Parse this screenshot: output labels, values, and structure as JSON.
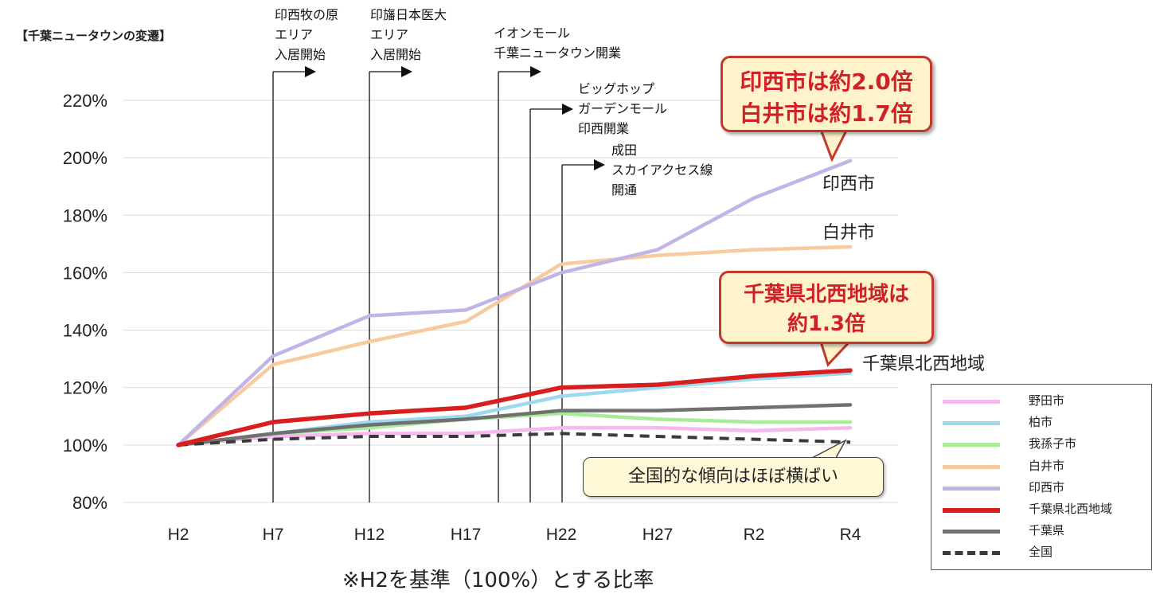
{
  "header": {
    "title": "【千葉ニュータウンの変遷】"
  },
  "footnote": "※H2を基準（100%）とする比率",
  "callouts": {
    "inzai_shiroi": [
      "印西市は約2.0倍",
      "白井市は約1.7倍"
    ],
    "hokusei": [
      "千葉県北西地域は",
      "約1.3倍"
    ],
    "national": "全国的な傾向はほぼ横ばい"
  },
  "events": [
    {
      "lines": [
        "印西牧の原",
        "エリア",
        "入居開始"
      ]
    },
    {
      "lines": [
        "印旛日本医大",
        "エリア",
        "入居開始"
      ]
    },
    {
      "lines": [
        "イオンモール",
        "千葉ニュータウン開業"
      ]
    },
    {
      "lines": [
        "ビッグホップ",
        "ガーデンモール",
        "印西開業"
      ]
    },
    {
      "lines": [
        "成田",
        "スカイアクセス線",
        "開通"
      ]
    }
  ],
  "series_labels": {
    "inzai": "印西市",
    "shiroi": "白井市",
    "hokusei": "千葉県北西地域"
  },
  "legend": [
    {
      "label": "野田市",
      "color": "#f7b8f0",
      "style": "solid"
    },
    {
      "label": "柏市",
      "color": "#9ed8ee",
      "style": "solid"
    },
    {
      "label": "我孫子市",
      "color": "#a8ec98",
      "style": "solid"
    },
    {
      "label": "白井市",
      "color": "#f8caa0",
      "style": "solid"
    },
    {
      "label": "印西市",
      "color": "#c3b4e8",
      "style": "solid"
    },
    {
      "label": "千葉県北西地域",
      "color": "#d81e1e",
      "style": "solid"
    },
    {
      "label": "千葉県",
      "color": "#707070",
      "style": "solid"
    },
    {
      "label": "全国",
      "color": "#3a3a3a",
      "style": "dashed"
    }
  ],
  "chart_data": {
    "type": "line",
    "categories": [
      "H2",
      "H7",
      "H12",
      "H17",
      "H22",
      "H27",
      "R2",
      "R4"
    ],
    "ylim": [
      80,
      220
    ],
    "yticks": [
      "80%",
      "100%",
      "120%",
      "140%",
      "160%",
      "180%",
      "200%",
      "220%"
    ],
    "grid": true,
    "legend_position": "bottom-right",
    "series": [
      {
        "name": "野田市",
        "color": "#f7b8f0",
        "values": [
          100,
          103,
          104,
          104,
          106,
          106,
          105,
          106
        ]
      },
      {
        "name": "柏市",
        "color": "#9ed8ee",
        "values": [
          100,
          104,
          108,
          110,
          117,
          120,
          123,
          125
        ]
      },
      {
        "name": "我孫子市",
        "color": "#a8ec98",
        "values": [
          100,
          104,
          106,
          109,
          111,
          109,
          108,
          108
        ]
      },
      {
        "name": "白井市",
        "color": "#f8caa0",
        "values": [
          100,
          128,
          136,
          143,
          163,
          166,
          168,
          169
        ]
      },
      {
        "name": "印西市",
        "color": "#c3b4e8",
        "values": [
          100,
          131,
          145,
          147,
          160,
          168,
          186,
          199
        ]
      },
      {
        "name": "千葉県北西地域",
        "color": "#d81e1e",
        "values": [
          100,
          108,
          111,
          113,
          120,
          121,
          124,
          126
        ]
      },
      {
        "name": "千葉県",
        "color": "#707070",
        "values": [
          100,
          104,
          107,
          109,
          112,
          112,
          113,
          114
        ]
      },
      {
        "name": "全国",
        "color": "#3a3a3a",
        "dashed": true,
        "values": [
          100,
          102,
          103,
          103,
          104,
          103,
          102,
          101
        ]
      }
    ]
  }
}
